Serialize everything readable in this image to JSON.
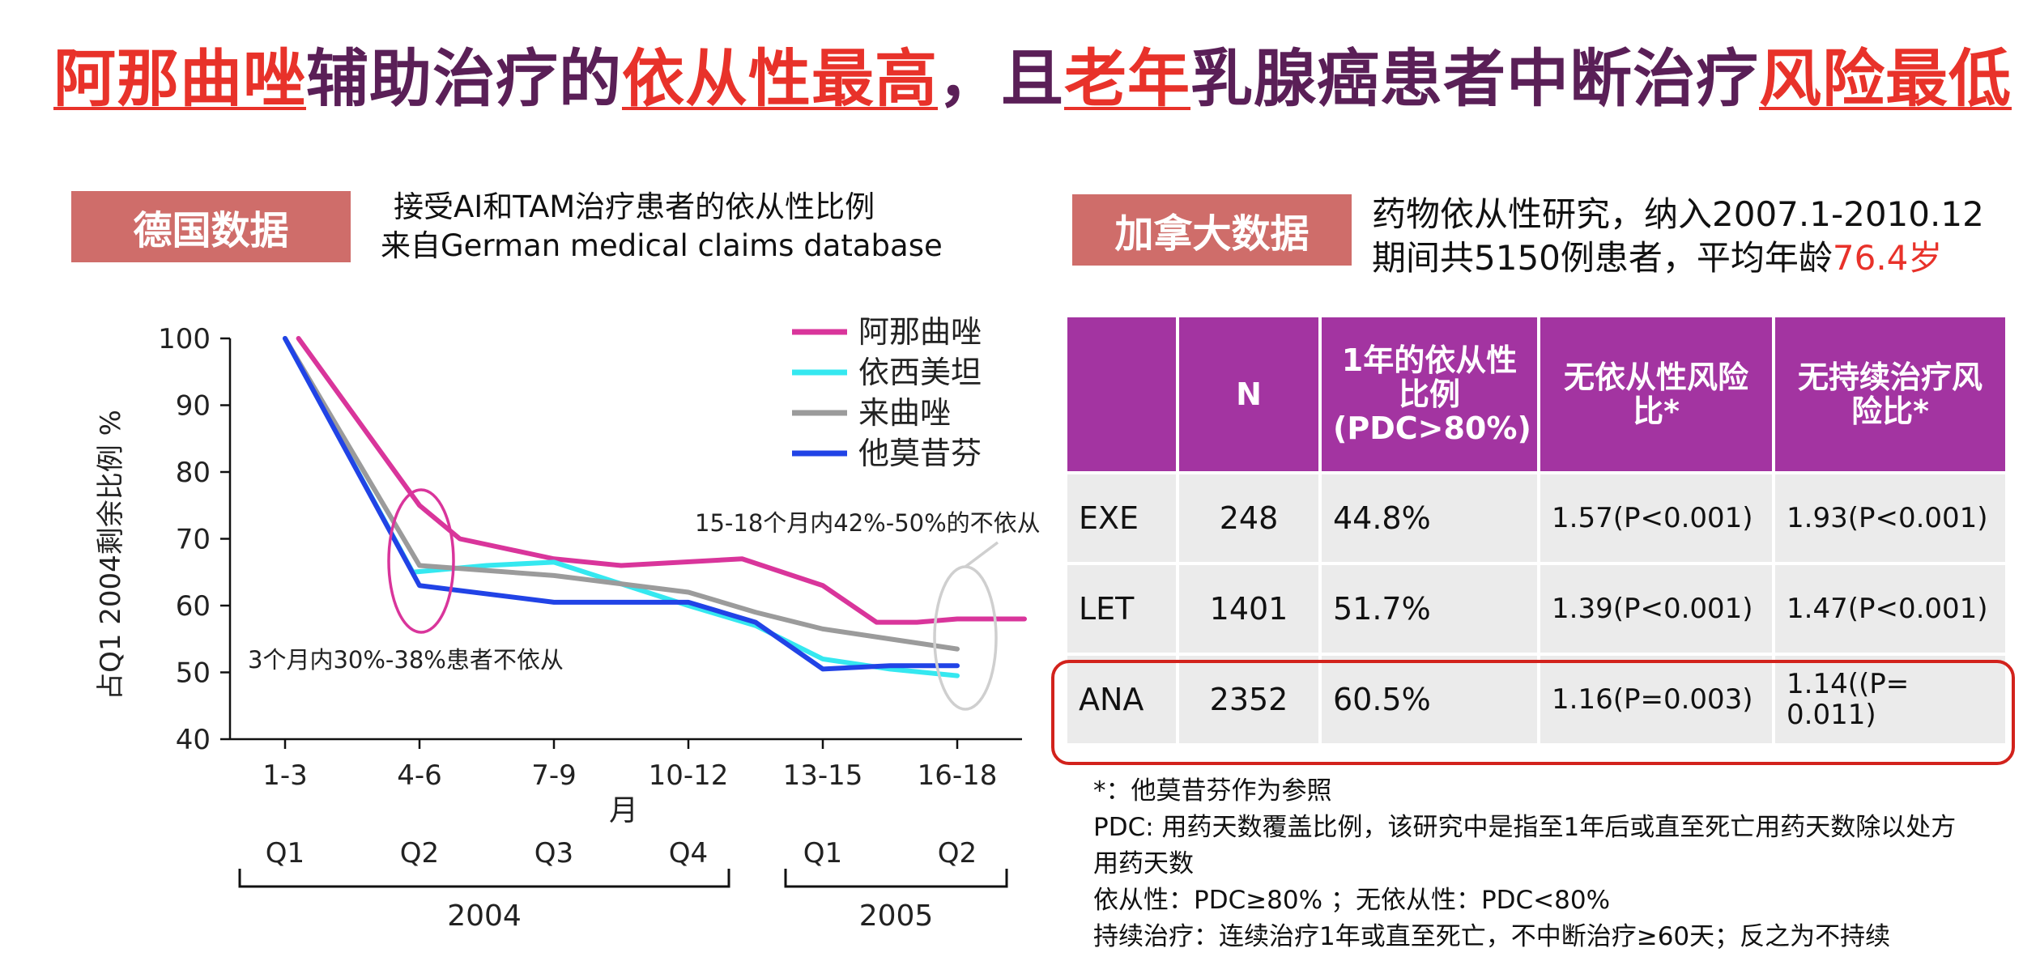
{
  "title": {
    "p1": "阿那曲唑",
    "p2": "辅助治疗的",
    "p3": "依从性最高",
    "p4": "，且",
    "p5": "老年",
    "p6": "乳腺癌患者中断治疗",
    "p7": "风险最低"
  },
  "left_panel": {
    "badge": "德国数据",
    "subtitle_line1": "接受AI和TAM治疗患者的依从性比例",
    "subtitle_line2": "来自German medical claims database"
  },
  "right_panel": {
    "badge": "加拿大数据",
    "desc_line1": "药物依从性研究，纳入2007.1-2010.12",
    "desc_line2_prefix": "期间共5150例患者，平均年龄",
    "desc_line2_age": "76.4岁"
  },
  "chart_data": {
    "type": "line",
    "categories": [
      "1-3",
      "4-6",
      "7-9",
      "10-12",
      "13-15",
      "16-18"
    ],
    "x": [
      0,
      1,
      1.5,
      2,
      2.5,
      3,
      3.5,
      4,
      4.5,
      5,
      5.5
    ],
    "series": [
      {
        "name": "阿那曲唑",
        "color": "#d9359b",
        "values": [
          100,
          75,
          70,
          67,
          66,
          67,
          63,
          57.5,
          57.5,
          58,
          58
        ],
        "x": [
          0.1,
          1,
          1.3,
          2,
          2.5,
          3.4,
          4,
          4.4,
          4.7,
          5,
          5.5
        ]
      },
      {
        "name": "依西美坦",
        "color": "#35e8f0",
        "values": [
          100,
          65,
          66,
          66.5,
          60,
          57,
          52,
          50.5,
          49.5
        ],
        "x": [
          0,
          0.95,
          1.5,
          2,
          3,
          3.5,
          4,
          4.5,
          5
        ]
      },
      {
        "name": "来曲唑",
        "color": "#9b9b9b",
        "values": [
          100,
          66,
          64.5,
          62,
          59,
          56.5,
          55,
          53.5
        ],
        "x": [
          0,
          1,
          2,
          3,
          3.5,
          4,
          4.5,
          5
        ]
      },
      {
        "name": "他莫昔芬",
        "color": "#2143e6",
        "values": [
          100,
          63,
          60.5,
          60.5,
          57.5,
          50.5,
          51,
          51
        ],
        "x": [
          0,
          1,
          2,
          3,
          3.5,
          4,
          4.5,
          5
        ]
      }
    ],
    "ylim": [
      40,
      100
    ],
    "yticks": [
      40,
      50,
      60,
      70,
      80,
      90,
      100
    ],
    "ylabel": "占Q1 2004剩余比例 %",
    "xlabel": "月",
    "quarters": [
      "Q1",
      "Q2",
      "Q3",
      "Q4",
      "Q1",
      "Q2"
    ],
    "years": [
      "2004",
      "2005"
    ],
    "annotations": {
      "left": "3个月内30%-38%患者不依从",
      "right": "15-18个月内42%-50%的不依从"
    }
  },
  "table": {
    "headers": [
      "",
      "N",
      "1年的依从性比例(PDC>80%)",
      "无依从性风险比*",
      "无持续治疗风险比*"
    ],
    "header_lines": {
      "c3": [
        "1年的依从性",
        "比例",
        "(PDC>80%)"
      ],
      "c4": [
        "无依从性风险",
        "比*"
      ],
      "c5": [
        "无持续治疗风",
        "险比*"
      ]
    },
    "rows": [
      {
        "drug": "EXE",
        "n": "248",
        "rate": "44.8%",
        "hr1": "1.57(P<0.001)",
        "hr2": "1.93(P<0.001)"
      },
      {
        "drug": "LET",
        "n": "1401",
        "rate": "51.7%",
        "hr1": "1.39(P<0.001)",
        "hr2": "1.47(P<0.001)"
      },
      {
        "drug": "ANA",
        "n": "2352",
        "rate": "60.5%",
        "hr1": "1.16(P=0.003)",
        "hr2_l1": "1.14((P=",
        "hr2_l2": "0.011)"
      }
    ]
  },
  "notes": [
    "*：他莫昔芬作为参照",
    "PDC: 用药天数覆盖比例，该研究中是指至1年后或直至死亡用药天数除以处方",
    "用药天数",
    "依从性：PDC≥80% ；无依从性：PDC<80%",
    "持续治疗：连续治疗1年或直至死亡，不中断治疗≥60天；反之为不持续"
  ]
}
